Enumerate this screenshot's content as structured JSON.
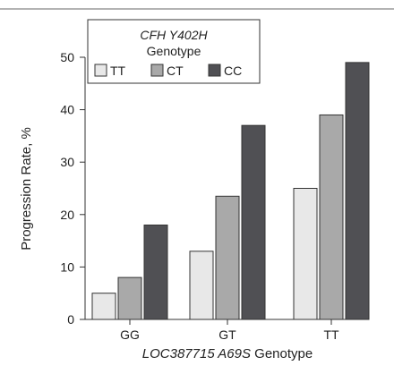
{
  "chart_data": {
    "type": "bar",
    "categories": [
      "GG",
      "GT",
      "TT"
    ],
    "series": [
      {
        "name": "TT",
        "values": [
          5,
          13,
          25
        ],
        "color": "#e8e8e8"
      },
      {
        "name": "CT",
        "values": [
          8,
          23.5,
          39
        ],
        "color": "#a9a9a9"
      },
      {
        "name": "CC",
        "values": [
          18,
          37,
          49
        ],
        "color": "#505054"
      }
    ],
    "xlabel_italic": "LOC387715 A69S",
    "xlabel_suffix": " Genotype",
    "ylabel": "Progression Rate, %",
    "ylim": [
      0,
      50
    ],
    "yticks": [
      0,
      10,
      20,
      30,
      40,
      50
    ],
    "legend": {
      "title_italic": "CFH Y402H",
      "title_line2": "Genotype",
      "placement": "top-left"
    },
    "grid": false,
    "bar_edge_color": "#333333"
  }
}
